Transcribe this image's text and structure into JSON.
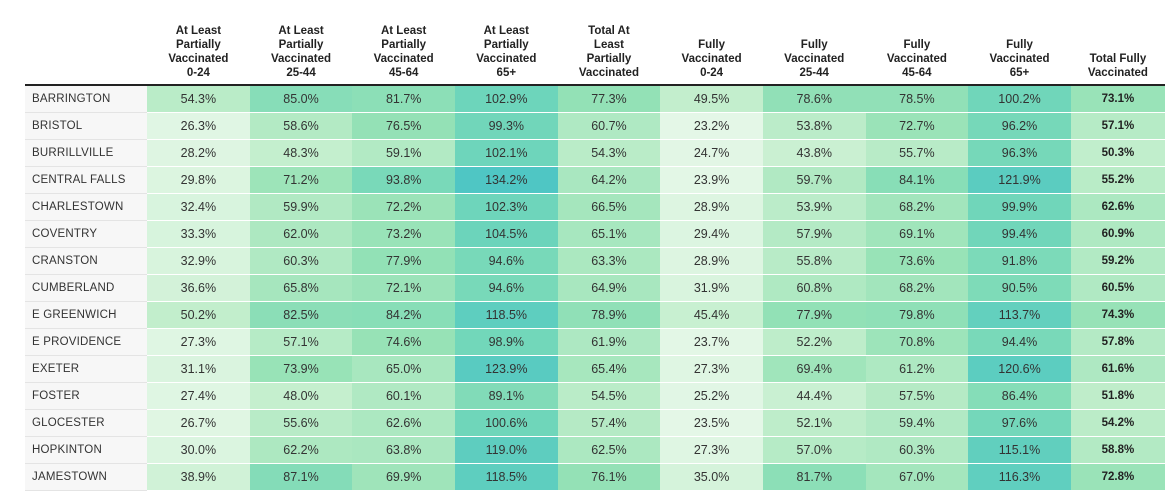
{
  "table": {
    "columns": [
      [
        "At Least",
        "Partially",
        "Vaccinated",
        "0-24"
      ],
      [
        "At Least",
        "Partially",
        "Vaccinated",
        "25-44"
      ],
      [
        "At Least",
        "Partially",
        "Vaccinated",
        "45-64"
      ],
      [
        "At Least",
        "Partially",
        "Vaccinated",
        "65+"
      ],
      [
        "Total At",
        "Least",
        "Partially",
        "Vaccinated"
      ],
      [
        "Fully",
        "Vaccinated",
        "0-24"
      ],
      [
        "Fully",
        "Vaccinated",
        "25-44"
      ],
      [
        "Fully",
        "Vaccinated",
        "45-64"
      ],
      [
        "Fully",
        "Vaccinated",
        "65+"
      ],
      [
        "Total Fully",
        "Vaccinated"
      ]
    ],
    "rows": [
      {
        "town": "BARRINGTON",
        "values": [
          "54.3%",
          "85.0%",
          "81.7%",
          "102.9%",
          "77.3%",
          "49.5%",
          "78.6%",
          "78.5%",
          "100.2%",
          "73.1%"
        ]
      },
      {
        "town": "BRISTOL",
        "values": [
          "26.3%",
          "58.6%",
          "76.5%",
          "99.3%",
          "60.7%",
          "23.2%",
          "53.8%",
          "72.7%",
          "96.2%",
          "57.1%"
        ]
      },
      {
        "town": "BURRILLVILLE",
        "values": [
          "28.2%",
          "48.3%",
          "59.1%",
          "102.1%",
          "54.3%",
          "24.7%",
          "43.8%",
          "55.7%",
          "96.3%",
          "50.3%"
        ]
      },
      {
        "town": "CENTRAL FALLS",
        "values": [
          "29.8%",
          "71.2%",
          "93.8%",
          "134.2%",
          "64.2%",
          "23.9%",
          "59.7%",
          "84.1%",
          "121.9%",
          "55.2%"
        ]
      },
      {
        "town": "CHARLESTOWN",
        "values": [
          "32.4%",
          "59.9%",
          "72.2%",
          "102.3%",
          "66.5%",
          "28.9%",
          "53.9%",
          "68.2%",
          "99.9%",
          "62.6%"
        ]
      },
      {
        "town": "COVENTRY",
        "values": [
          "33.3%",
          "62.0%",
          "73.2%",
          "104.5%",
          "65.1%",
          "29.4%",
          "57.9%",
          "69.1%",
          "99.4%",
          "60.9%"
        ]
      },
      {
        "town": "CRANSTON",
        "values": [
          "32.9%",
          "60.3%",
          "77.9%",
          "94.6%",
          "63.3%",
          "28.9%",
          "55.8%",
          "73.6%",
          "91.8%",
          "59.2%"
        ]
      },
      {
        "town": "CUMBERLAND",
        "values": [
          "36.6%",
          "65.8%",
          "72.1%",
          "94.6%",
          "64.9%",
          "31.9%",
          "60.8%",
          "68.2%",
          "90.5%",
          "60.5%"
        ]
      },
      {
        "town": "E GREENWICH",
        "values": [
          "50.2%",
          "82.5%",
          "84.2%",
          "118.5%",
          "78.9%",
          "45.4%",
          "77.9%",
          "79.8%",
          "113.7%",
          "74.3%"
        ]
      },
      {
        "town": "E PROVIDENCE",
        "values": [
          "27.3%",
          "57.1%",
          "74.6%",
          "98.9%",
          "61.9%",
          "23.7%",
          "52.2%",
          "70.8%",
          "94.4%",
          "57.8%"
        ]
      },
      {
        "town": "EXETER",
        "values": [
          "31.1%",
          "73.9%",
          "65.0%",
          "123.9%",
          "65.4%",
          "27.3%",
          "69.4%",
          "61.2%",
          "120.6%",
          "61.6%"
        ]
      },
      {
        "town": "FOSTER",
        "values": [
          "27.4%",
          "48.0%",
          "60.1%",
          "89.1%",
          "54.5%",
          "25.2%",
          "44.4%",
          "57.5%",
          "86.4%",
          "51.8%"
        ]
      },
      {
        "town": "GLOCESTER",
        "values": [
          "26.7%",
          "55.6%",
          "62.6%",
          "100.6%",
          "57.4%",
          "23.5%",
          "52.1%",
          "59.4%",
          "97.6%",
          "54.2%"
        ]
      },
      {
        "town": "HOPKINTON",
        "values": [
          "30.0%",
          "62.2%",
          "63.8%",
          "119.0%",
          "62.5%",
          "27.3%",
          "57.0%",
          "60.3%",
          "115.1%",
          "58.8%"
        ]
      },
      {
        "town": "JAMESTOWN",
        "values": [
          "38.9%",
          "87.1%",
          "69.9%",
          "118.5%",
          "76.1%",
          "35.0%",
          "81.7%",
          "67.0%",
          "116.3%",
          "72.8%"
        ]
      }
    ]
  }
}
